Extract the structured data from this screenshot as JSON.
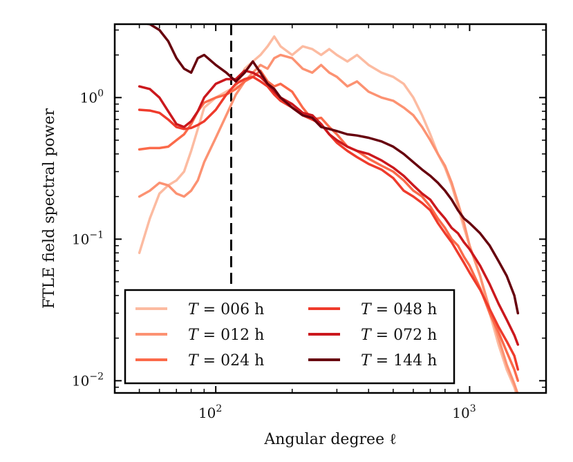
{
  "chart_data": {
    "type": "line",
    "xlabel": "Angular degree ℓ",
    "ylabel": "FTLE field spectral power",
    "xscale": "log",
    "yscale": "log",
    "xlim": [
      40,
      2000
    ],
    "ylim": [
      0.0082,
      3.3
    ],
    "x_ticks": [
      {
        "value": 100,
        "base": "10",
        "exp": "2"
      },
      {
        "value": 1000,
        "base": "10",
        "exp": "3"
      }
    ],
    "y_ticks": [
      {
        "value": 0.01,
        "base": "10",
        "exp": "−2"
      },
      {
        "value": 0.1,
        "base": "10",
        "exp": "−1"
      },
      {
        "value": 1,
        "base": "10",
        "exp": "0"
      }
    ],
    "vline": {
      "x": 115,
      "style": "dashed"
    },
    "legend": {
      "placement": "lower-left",
      "columns": 2
    },
    "series": [
      {
        "name": "T = 006 h",
        "t_label": "T",
        "value_label": " = 006 h",
        "color": "#fcbba1",
        "points": [
          [
            50,
            0.08
          ],
          [
            55,
            0.14
          ],
          [
            60,
            0.21
          ],
          [
            65,
            0.24
          ],
          [
            70,
            0.26
          ],
          [
            75,
            0.3
          ],
          [
            80,
            0.42
          ],
          [
            85,
            0.6
          ],
          [
            90,
            0.85
          ],
          [
            100,
            1.0
          ],
          [
            110,
            1.1
          ],
          [
            120,
            1.2
          ],
          [
            130,
            1.6
          ],
          [
            140,
            1.8
          ],
          [
            150,
            2.0
          ],
          [
            160,
            2.3
          ],
          [
            170,
            2.7
          ],
          [
            180,
            2.3
          ],
          [
            200,
            2.0
          ],
          [
            220,
            2.3
          ],
          [
            240,
            2.2
          ],
          [
            260,
            2.0
          ],
          [
            280,
            2.2
          ],
          [
            300,
            2.0
          ],
          [
            330,
            1.8
          ],
          [
            360,
            2.0
          ],
          [
            400,
            1.7
          ],
          [
            450,
            1.5
          ],
          [
            500,
            1.4
          ],
          [
            550,
            1.25
          ],
          [
            600,
            1.0
          ],
          [
            650,
            0.75
          ],
          [
            700,
            0.55
          ],
          [
            750,
            0.4
          ],
          [
            800,
            0.32
          ],
          [
            850,
            0.24
          ],
          [
            900,
            0.17
          ],
          [
            950,
            0.12
          ],
          [
            1000,
            0.09
          ],
          [
            1100,
            0.055
          ],
          [
            1200,
            0.03
          ],
          [
            1300,
            0.018
          ],
          [
            1400,
            0.012
          ],
          [
            1500,
            0.009
          ],
          [
            1550,
            0.0075
          ]
        ]
      },
      {
        "name": "T = 012 h",
        "t_label": "T",
        "value_label": " = 012 h",
        "color": "#fc9272",
        "points": [
          [
            50,
            0.2
          ],
          [
            55,
            0.22
          ],
          [
            60,
            0.25
          ],
          [
            65,
            0.24
          ],
          [
            70,
            0.21
          ],
          [
            75,
            0.2
          ],
          [
            80,
            0.22
          ],
          [
            85,
            0.26
          ],
          [
            90,
            0.35
          ],
          [
            100,
            0.52
          ],
          [
            110,
            0.75
          ],
          [
            120,
            1.05
          ],
          [
            130,
            1.3
          ],
          [
            140,
            1.5
          ],
          [
            150,
            1.7
          ],
          [
            160,
            1.6
          ],
          [
            170,
            1.9
          ],
          [
            180,
            2.0
          ],
          [
            200,
            1.9
          ],
          [
            220,
            1.6
          ],
          [
            240,
            1.5
          ],
          [
            260,
            1.7
          ],
          [
            280,
            1.5
          ],
          [
            300,
            1.4
          ],
          [
            330,
            1.2
          ],
          [
            360,
            1.3
          ],
          [
            400,
            1.1
          ],
          [
            450,
            1.0
          ],
          [
            500,
            0.95
          ],
          [
            550,
            0.85
          ],
          [
            600,
            0.75
          ],
          [
            650,
            0.62
          ],
          [
            700,
            0.5
          ],
          [
            750,
            0.4
          ],
          [
            800,
            0.33
          ],
          [
            850,
            0.25
          ],
          [
            900,
            0.18
          ],
          [
            950,
            0.13
          ],
          [
            1000,
            0.09
          ],
          [
            1100,
            0.055
          ],
          [
            1200,
            0.032
          ],
          [
            1300,
            0.02
          ],
          [
            1400,
            0.013
          ],
          [
            1500,
            0.0095
          ],
          [
            1550,
            0.008
          ]
        ]
      },
      {
        "name": "T = 024 h",
        "t_label": "T",
        "value_label": " = 024 h",
        "color": "#fb6a4a",
        "points": [
          [
            50,
            0.43
          ],
          [
            55,
            0.44
          ],
          [
            60,
            0.44
          ],
          [
            65,
            0.45
          ],
          [
            70,
            0.5
          ],
          [
            75,
            0.55
          ],
          [
            80,
            0.65
          ],
          [
            85,
            0.8
          ],
          [
            90,
            0.92
          ],
          [
            100,
            1.0
          ],
          [
            110,
            1.05
          ],
          [
            120,
            1.15
          ],
          [
            130,
            1.3
          ],
          [
            140,
            1.4
          ],
          [
            150,
            1.55
          ],
          [
            160,
            1.3
          ],
          [
            170,
            1.2
          ],
          [
            180,
            1.25
          ],
          [
            200,
            1.1
          ],
          [
            220,
            0.85
          ],
          [
            240,
            0.7
          ],
          [
            260,
            0.72
          ],
          [
            280,
            0.62
          ],
          [
            300,
            0.55
          ],
          [
            330,
            0.45
          ],
          [
            360,
            0.42
          ],
          [
            400,
            0.37
          ],
          [
            450,
            0.33
          ],
          [
            500,
            0.3
          ],
          [
            550,
            0.26
          ],
          [
            600,
            0.22
          ],
          [
            650,
            0.2
          ],
          [
            700,
            0.17
          ],
          [
            750,
            0.14
          ],
          [
            800,
            0.12
          ],
          [
            850,
            0.1
          ],
          [
            900,
            0.09
          ],
          [
            950,
            0.075
          ],
          [
            1000,
            0.065
          ],
          [
            1100,
            0.045
          ],
          [
            1200,
            0.03
          ],
          [
            1300,
            0.022
          ],
          [
            1400,
            0.016
          ],
          [
            1500,
            0.012
          ],
          [
            1550,
            0.01
          ]
        ]
      },
      {
        "name": "T = 048 h",
        "t_label": "T",
        "value_label": " = 048 h",
        "color": "#ef3b2c",
        "points": [
          [
            50,
            0.82
          ],
          [
            55,
            0.81
          ],
          [
            60,
            0.78
          ],
          [
            65,
            0.7
          ],
          [
            70,
            0.62
          ],
          [
            75,
            0.6
          ],
          [
            80,
            0.61
          ],
          [
            85,
            0.64
          ],
          [
            90,
            0.68
          ],
          [
            100,
            0.82
          ],
          [
            110,
            1.05
          ],
          [
            120,
            1.25
          ],
          [
            130,
            1.35
          ],
          [
            140,
            1.4
          ],
          [
            150,
            1.3
          ],
          [
            160,
            1.2
          ],
          [
            170,
            1.05
          ],
          [
            180,
            0.95
          ],
          [
            200,
            0.85
          ],
          [
            220,
            0.75
          ],
          [
            240,
            0.7
          ],
          [
            260,
            0.65
          ],
          [
            280,
            0.55
          ],
          [
            300,
            0.48
          ],
          [
            330,
            0.42
          ],
          [
            360,
            0.38
          ],
          [
            400,
            0.34
          ],
          [
            450,
            0.31
          ],
          [
            500,
            0.27
          ],
          [
            550,
            0.22
          ],
          [
            600,
            0.2
          ],
          [
            650,
            0.18
          ],
          [
            700,
            0.16
          ],
          [
            750,
            0.13
          ],
          [
            800,
            0.11
          ],
          [
            850,
            0.095
          ],
          [
            900,
            0.08
          ],
          [
            950,
            0.068
          ],
          [
            1000,
            0.058
          ],
          [
            1100,
            0.044
          ],
          [
            1200,
            0.032
          ],
          [
            1300,
            0.024
          ],
          [
            1400,
            0.019
          ],
          [
            1500,
            0.015
          ],
          [
            1550,
            0.012
          ]
        ]
      },
      {
        "name": "T = 072 h",
        "t_label": "T",
        "value_label": " = 072 h",
        "color": "#cb181d",
        "points": [
          [
            50,
            1.2
          ],
          [
            55,
            1.15
          ],
          [
            60,
            1.0
          ],
          [
            65,
            0.8
          ],
          [
            70,
            0.65
          ],
          [
            75,
            0.62
          ],
          [
            80,
            0.68
          ],
          [
            85,
            0.8
          ],
          [
            90,
            1.0
          ],
          [
            100,
            1.25
          ],
          [
            110,
            1.35
          ],
          [
            120,
            1.35
          ],
          [
            130,
            1.55
          ],
          [
            140,
            1.5
          ],
          [
            150,
            1.4
          ],
          [
            160,
            1.25
          ],
          [
            170,
            1.1
          ],
          [
            180,
            1.0
          ],
          [
            200,
            0.9
          ],
          [
            220,
            0.78
          ],
          [
            240,
            0.75
          ],
          [
            260,
            0.65
          ],
          [
            280,
            0.55
          ],
          [
            300,
            0.5
          ],
          [
            330,
            0.45
          ],
          [
            360,
            0.42
          ],
          [
            400,
            0.4
          ],
          [
            450,
            0.36
          ],
          [
            500,
            0.32
          ],
          [
            550,
            0.28
          ],
          [
            600,
            0.24
          ],
          [
            650,
            0.21
          ],
          [
            700,
            0.19
          ],
          [
            750,
            0.16
          ],
          [
            800,
            0.14
          ],
          [
            850,
            0.12
          ],
          [
            900,
            0.11
          ],
          [
            950,
            0.095
          ],
          [
            1000,
            0.085
          ],
          [
            1100,
            0.065
          ],
          [
            1200,
            0.048
          ],
          [
            1300,
            0.035
          ],
          [
            1400,
            0.027
          ],
          [
            1500,
            0.021
          ],
          [
            1550,
            0.018
          ]
        ]
      },
      {
        "name": "T = 144 h",
        "t_label": "T",
        "value_label": " = 144 h",
        "color": "#67000d",
        "points": [
          [
            50,
            3.4
          ],
          [
            55,
            3.3
          ],
          [
            60,
            3.0
          ],
          [
            65,
            2.5
          ],
          [
            70,
            1.9
          ],
          [
            75,
            1.6
          ],
          [
            80,
            1.5
          ],
          [
            85,
            1.9
          ],
          [
            90,
            2.0
          ],
          [
            100,
            1.7
          ],
          [
            110,
            1.5
          ],
          [
            120,
            1.3
          ],
          [
            130,
            1.5
          ],
          [
            140,
            1.8
          ],
          [
            150,
            1.5
          ],
          [
            160,
            1.25
          ],
          [
            170,
            1.15
          ],
          [
            180,
            1.0
          ],
          [
            200,
            0.85
          ],
          [
            220,
            0.75
          ],
          [
            240,
            0.72
          ],
          [
            260,
            0.62
          ],
          [
            280,
            0.6
          ],
          [
            300,
            0.58
          ],
          [
            330,
            0.55
          ],
          [
            360,
            0.54
          ],
          [
            400,
            0.52
          ],
          [
            450,
            0.49
          ],
          [
            500,
            0.45
          ],
          [
            550,
            0.4
          ],
          [
            600,
            0.35
          ],
          [
            650,
            0.31
          ],
          [
            700,
            0.28
          ],
          [
            750,
            0.25
          ],
          [
            800,
            0.22
          ],
          [
            850,
            0.19
          ],
          [
            900,
            0.16
          ],
          [
            950,
            0.14
          ],
          [
            1000,
            0.13
          ],
          [
            1100,
            0.11
          ],
          [
            1200,
            0.09
          ],
          [
            1300,
            0.07
          ],
          [
            1400,
            0.055
          ],
          [
            1500,
            0.04
          ],
          [
            1550,
            0.03
          ]
        ]
      }
    ]
  }
}
